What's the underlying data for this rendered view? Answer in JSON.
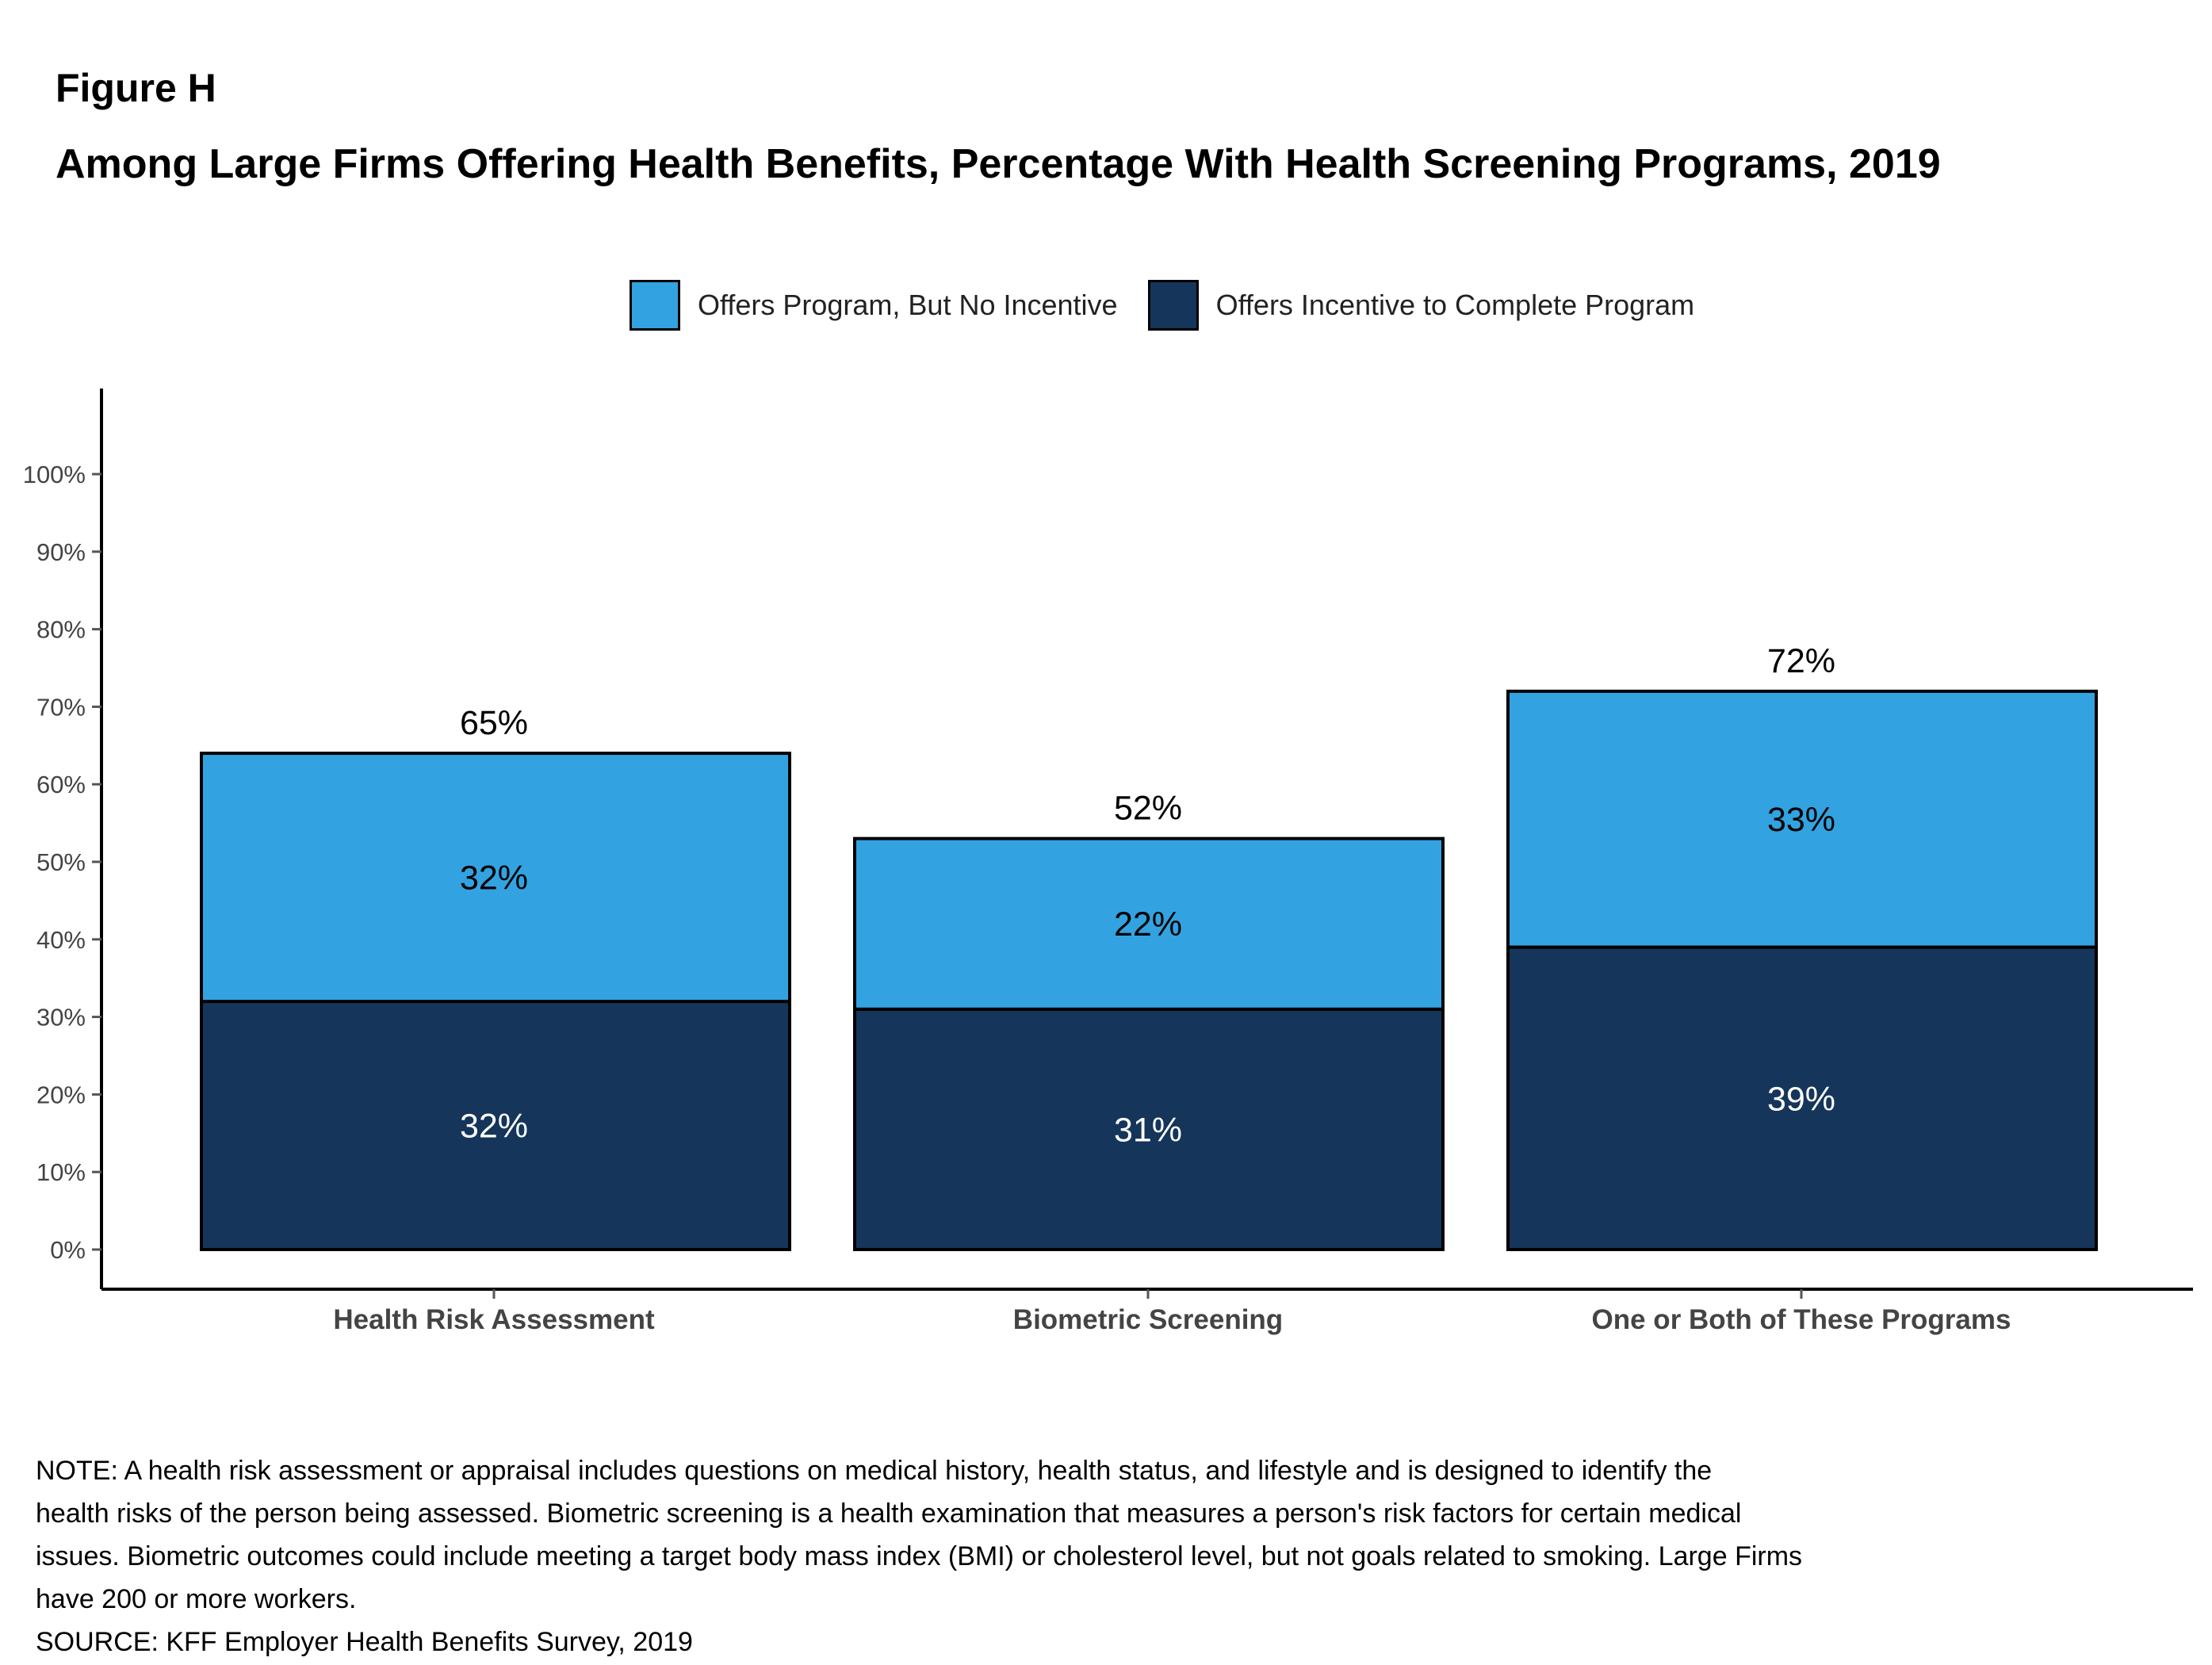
{
  "figure_label": "Figure H",
  "title": "Among Large Firms Offering Health Benefits, Percentage With Health Screening Programs, 2019",
  "legend": [
    {
      "label": "Offers Program, But No Incentive",
      "color": "#33a2e0"
    },
    {
      "label": "Offers Incentive to Complete Program",
      "color": "#15355a"
    }
  ],
  "chart_data": {
    "type": "bar",
    "stacked": true,
    "categories": [
      "Health Risk Assessment",
      "Biometric Screening",
      "One or Both of These Programs"
    ],
    "series": [
      {
        "name": "Offers Incentive to Complete Program",
        "values": [
          32,
          31,
          39
        ],
        "labels": [
          "32%",
          "31%",
          "39%"
        ],
        "color": "#15355a",
        "label_color": "#ffffff"
      },
      {
        "name": "Offers Program, But No Incentive",
        "values": [
          32,
          22,
          33
        ],
        "labels": [
          "32%",
          "22%",
          "33%"
        ],
        "color": "#33a2e0",
        "label_color": "#000000"
      }
    ],
    "totals": [
      65,
      52,
      72
    ],
    "total_labels": [
      "65%",
      "52%",
      "72%"
    ],
    "yticks": [
      0,
      10,
      20,
      30,
      40,
      50,
      60,
      70,
      80,
      90,
      100
    ],
    "ytick_labels": [
      "0%",
      "10%",
      "20%",
      "30%",
      "40%",
      "50%",
      "60%",
      "70%",
      "80%",
      "90%",
      "100%"
    ],
    "ylim": [
      0,
      111
    ],
    "grid": false,
    "legend_position": "top"
  },
  "note": [
    "NOTE: A health risk assessment or appraisal includes questions on medical history, health status, and lifestyle and is designed to identify the",
    "health risks of the person being assessed.  Biometric screening is a health examination that measures a person's risk factors for certain medical",
    "issues. Biometric outcomes could include meeting a target body mass index (BMI) or cholesterol level, but not goals related to smoking.  Large Firms",
    "have 200 or more workers."
  ],
  "source": "SOURCE: KFF Employer Health Benefits Survey, 2019"
}
